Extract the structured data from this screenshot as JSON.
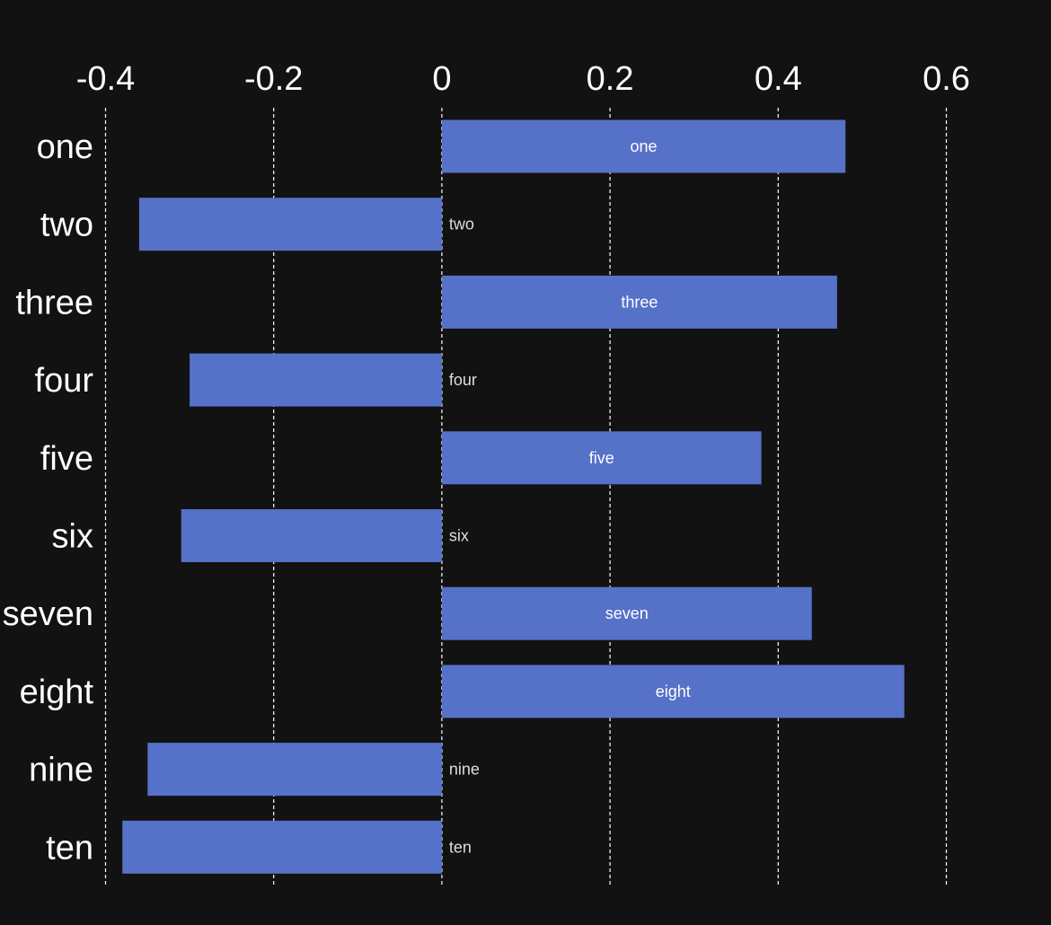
{
  "chart_data": {
    "type": "bar",
    "orientation": "horizontal",
    "categories": [
      "one",
      "two",
      "three",
      "four",
      "five",
      "six",
      "seven",
      "eight",
      "nine",
      "ten"
    ],
    "series": [
      {
        "values": [
          0.48,
          -0.36,
          0.47,
          -0.3,
          0.38,
          -0.31,
          0.44,
          0.55,
          -0.35,
          -0.38
        ]
      }
    ],
    "bar_labels": [
      "one",
      "two",
      "three",
      "four",
      "five",
      "six",
      "seven",
      "eight",
      "nine",
      "ten"
    ],
    "xlim": [
      -0.4,
      0.6
    ],
    "xticks": [
      -0.4,
      -0.2,
      0,
      0.2,
      0.4,
      0.6
    ],
    "xtick_labels": [
      "-0.4",
      "-0.2",
      "0",
      "0.2",
      "0.4",
      "0.6"
    ],
    "x_axis_position": "top",
    "grid": true,
    "grid_axis": "x",
    "grid_style": "dashed",
    "title": "",
    "xlabel": "",
    "ylabel": "",
    "legend": "none",
    "colors": {
      "background": "#121212",
      "bar": "#5671c8",
      "grid": "#ffffff",
      "text": "#ffffff",
      "outside_label": "#dddddd"
    }
  }
}
